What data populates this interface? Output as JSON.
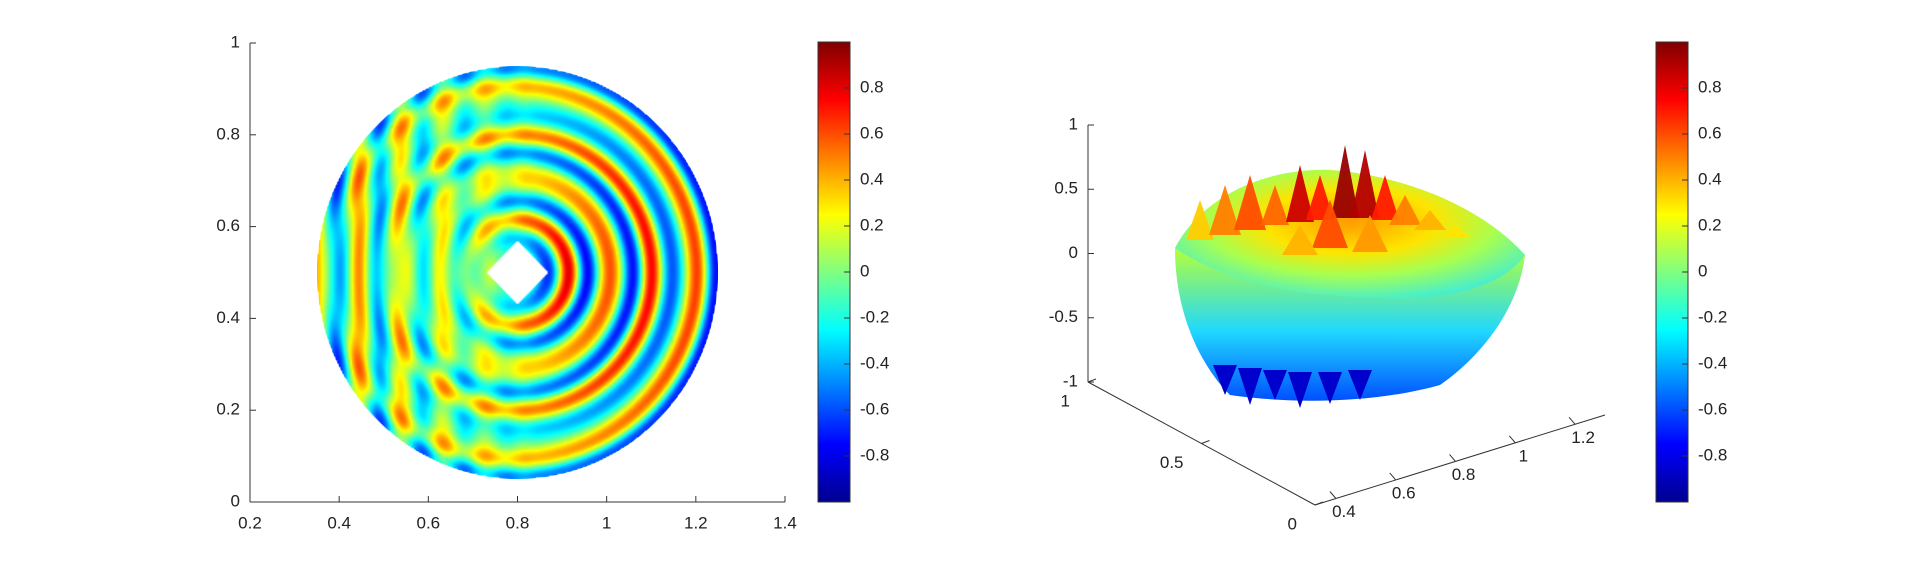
{
  "chart_data": [
    {
      "type": "heatmap",
      "title": "",
      "xlabel": "",
      "ylabel": "",
      "xlim": [
        0.2,
        1.4
      ],
      "ylim": [
        0,
        1
      ],
      "x_ticks": [
        "0.2",
        "0.4",
        "0.6",
        "0.8",
        "1",
        "1.2",
        "1.4"
      ],
      "y_ticks": [
        "0",
        "0.2",
        "0.4",
        "0.6",
        "0.8",
        "1"
      ],
      "domain": {
        "shape": "disk",
        "center": [
          0.8,
          0.5
        ],
        "radius": 0.45
      },
      "obstacle": {
        "shape": "diamond",
        "center": [
          0.8,
          0.5
        ],
        "half_diagonal": 0.07
      },
      "colormap": "jet",
      "clim": [
        -1,
        1
      ],
      "colorbar_ticks": [
        "0.8",
        "0.6",
        "0.4",
        "0.2",
        "0",
        "-0.2",
        "-0.4",
        "-0.6",
        "-0.8"
      ]
    },
    {
      "type": "surface",
      "title": "",
      "zlim": [
        -1,
        1
      ],
      "x_ticks": [
        "0.4",
        "0.6",
        "0.8",
        "1",
        "1.2"
      ],
      "y_ticks": [
        "0",
        "0.5",
        "1"
      ],
      "z_ticks": [
        "1",
        "0.5",
        "0",
        "-0.5",
        "-1"
      ],
      "colormap": "jet",
      "clim": [
        -1,
        1
      ],
      "colorbar_ticks": [
        "0.8",
        "0.6",
        "0.4",
        "0.2",
        "0",
        "-0.2",
        "-0.4",
        "-0.6",
        "-0.8"
      ]
    }
  ]
}
